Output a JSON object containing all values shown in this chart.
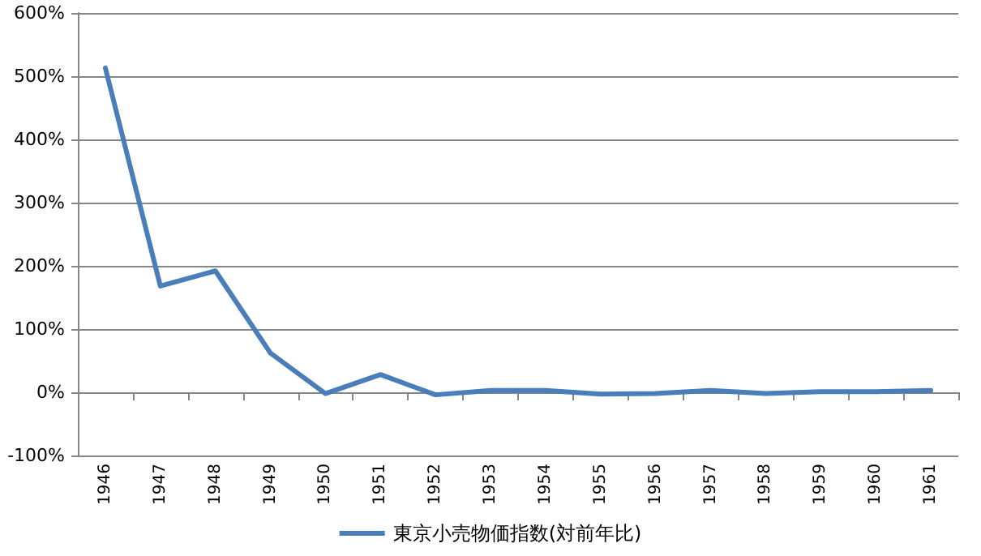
{
  "chart_data": {
    "type": "line",
    "categories": [
      "1946",
      "1947",
      "1948",
      "1949",
      "1950",
      "1951",
      "1952",
      "1953",
      "1954",
      "1955",
      "1956",
      "1957",
      "1958",
      "1959",
      "1960",
      "1961"
    ],
    "series": [
      {
        "name": "東京小売物価指数(対前年比)",
        "color": "#4a7ebb",
        "values": [
          513,
          168,
          192,
          62,
          -2,
          28,
          -4,
          3,
          3,
          -3,
          -2,
          3,
          -2,
          1,
          1,
          3
        ]
      }
    ],
    "ylim": [
      -100,
      600
    ],
    "yticks": [
      {
        "value": -100,
        "label": "-100%"
      },
      {
        "value": 0,
        "label": "0%"
      },
      {
        "value": 100,
        "label": "100%"
      },
      {
        "value": 200,
        "label": "200%"
      },
      {
        "value": 300,
        "label": "300%"
      },
      {
        "value": 400,
        "label": "400%"
      },
      {
        "value": 500,
        "label": "500%"
      },
      {
        "value": 600,
        "label": "600%"
      }
    ],
    "grid": "y",
    "legend": "bottom",
    "marker": "none",
    "line_style": "solid"
  }
}
